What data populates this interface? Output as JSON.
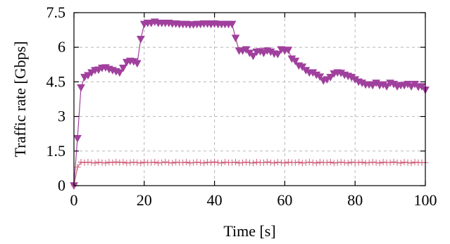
{
  "chart_data": {
    "type": "line",
    "title": "",
    "xlabel": "Time [s]",
    "ylabel": "Traffic rate [Gbps]",
    "xlim": [
      0,
      100
    ],
    "ylim": [
      0,
      7.5
    ],
    "xticks": [
      0,
      20,
      40,
      60,
      80,
      100
    ],
    "xtick_labels": [
      "0",
      "20",
      "40",
      "60",
      "80",
      "100"
    ],
    "yticks": [
      0,
      1.5,
      3,
      4.5,
      6,
      7.5
    ],
    "ytick_labels": [
      "0",
      "1.5",
      "3",
      "4.5",
      "6",
      "7.5"
    ],
    "grid": true,
    "legend": false,
    "series": [
      {
        "marker": "triangle-down",
        "color": "#a0409d",
        "x": [
          0,
          1,
          2,
          3,
          4,
          5,
          6,
          7,
          8,
          9,
          10,
          11,
          12,
          13,
          14,
          15,
          16,
          17,
          18,
          19,
          20,
          21,
          22,
          23,
          24,
          25,
          26,
          27,
          28,
          29,
          30,
          31,
          32,
          33,
          34,
          35,
          36,
          37,
          38,
          39,
          40,
          41,
          42,
          43,
          44,
          45,
          46,
          47,
          48,
          49,
          50,
          51,
          52,
          53,
          54,
          55,
          56,
          57,
          58,
          59,
          60,
          61,
          62,
          63,
          64,
          65,
          66,
          67,
          68,
          69,
          70,
          71,
          72,
          73,
          74,
          75,
          76,
          77,
          78,
          79,
          80,
          81,
          82,
          83,
          84,
          85,
          86,
          87,
          88,
          89,
          90,
          91,
          92,
          93,
          94,
          95,
          96,
          97,
          98,
          99,
          100
        ],
        "y": [
          0.0,
          2.05,
          4.25,
          4.7,
          4.78,
          4.9,
          5.0,
          5.02,
          5.1,
          5.12,
          5.05,
          5.0,
          4.95,
          4.9,
          5.1,
          5.35,
          5.4,
          5.38,
          5.3,
          6.35,
          7.0,
          7.05,
          7.05,
          7.1,
          7.05,
          7.05,
          7.05,
          7.05,
          7.02,
          7.02,
          7.0,
          7.0,
          7.0,
          6.98,
          6.98,
          7.0,
          7.0,
          7.02,
          7.02,
          7.0,
          7.02,
          7.0,
          7.0,
          7.0,
          7.0,
          7.0,
          6.4,
          5.85,
          5.85,
          5.9,
          5.75,
          5.62,
          5.8,
          5.82,
          5.75,
          5.85,
          5.8,
          5.72,
          5.7,
          5.9,
          5.85,
          5.88,
          5.5,
          5.4,
          5.2,
          5.15,
          5.0,
          4.9,
          4.9,
          4.8,
          4.72,
          4.55,
          4.6,
          4.7,
          4.85,
          4.9,
          4.88,
          4.8,
          4.75,
          4.7,
          4.6,
          4.5,
          4.45,
          4.38,
          4.38,
          4.35,
          4.45,
          4.35,
          4.38,
          4.3,
          4.45,
          4.4,
          4.3,
          4.35,
          4.35,
          4.4,
          4.3,
          4.4,
          4.28,
          4.3,
          4.15
        ]
      },
      {
        "marker": "plus",
        "color": "#d0647c",
        "x": [
          0,
          1,
          2,
          3,
          4,
          5,
          6,
          7,
          8,
          9,
          10,
          11,
          12,
          13,
          14,
          15,
          16,
          17,
          18,
          19,
          20,
          21,
          22,
          23,
          24,
          25,
          26,
          27,
          28,
          29,
          30,
          31,
          32,
          33,
          34,
          35,
          36,
          37,
          38,
          39,
          40,
          41,
          42,
          43,
          44,
          45,
          46,
          47,
          48,
          49,
          50,
          51,
          52,
          53,
          54,
          55,
          56,
          57,
          58,
          59,
          60,
          61,
          62,
          63,
          64,
          65,
          66,
          67,
          68,
          69,
          70,
          71,
          72,
          73,
          74,
          75,
          76,
          77,
          78,
          79,
          80,
          81,
          82,
          83,
          84,
          85,
          86,
          87,
          88,
          89,
          90,
          91,
          92,
          93,
          94,
          95,
          96,
          97,
          98,
          99,
          100
        ],
        "y": [
          0.0,
          0.8,
          1.02,
          1.0,
          1.02,
          1.0,
          0.98,
          1.02,
          1.0,
          0.98,
          1.02,
          1.0,
          1.03,
          1.0,
          1.02,
          0.98,
          1.0,
          1.02,
          1.0,
          0.98,
          1.02,
          1.0,
          1.0,
          1.02,
          0.98,
          1.0,
          1.03,
          1.0,
          0.98,
          1.02,
          1.0,
          1.0,
          1.02,
          0.98,
          1.0,
          1.02,
          1.0,
          0.98,
          1.02,
          1.0,
          1.03,
          1.0,
          0.98,
          1.02,
          1.0,
          1.0,
          1.02,
          0.98,
          1.0,
          1.02,
          1.0,
          0.98,
          1.02,
          1.0,
          1.0,
          1.03,
          1.0,
          0.98,
          1.02,
          1.0,
          0.98,
          1.02,
          1.0,
          1.0,
          1.02,
          0.98,
          1.0,
          1.02,
          1.0,
          0.98,
          1.02,
          1.0,
          1.0,
          1.02,
          0.98,
          1.0,
          1.02,
          1.0,
          0.98,
          1.02,
          1.0,
          1.0,
          1.02,
          0.98,
          1.0,
          1.02,
          1.0,
          0.98,
          1.02,
          1.0,
          1.0,
          1.03,
          1.0,
          0.98,
          1.02,
          1.0,
          0.98,
          1.02,
          1.0,
          1.0,
          1.0
        ]
      }
    ]
  }
}
